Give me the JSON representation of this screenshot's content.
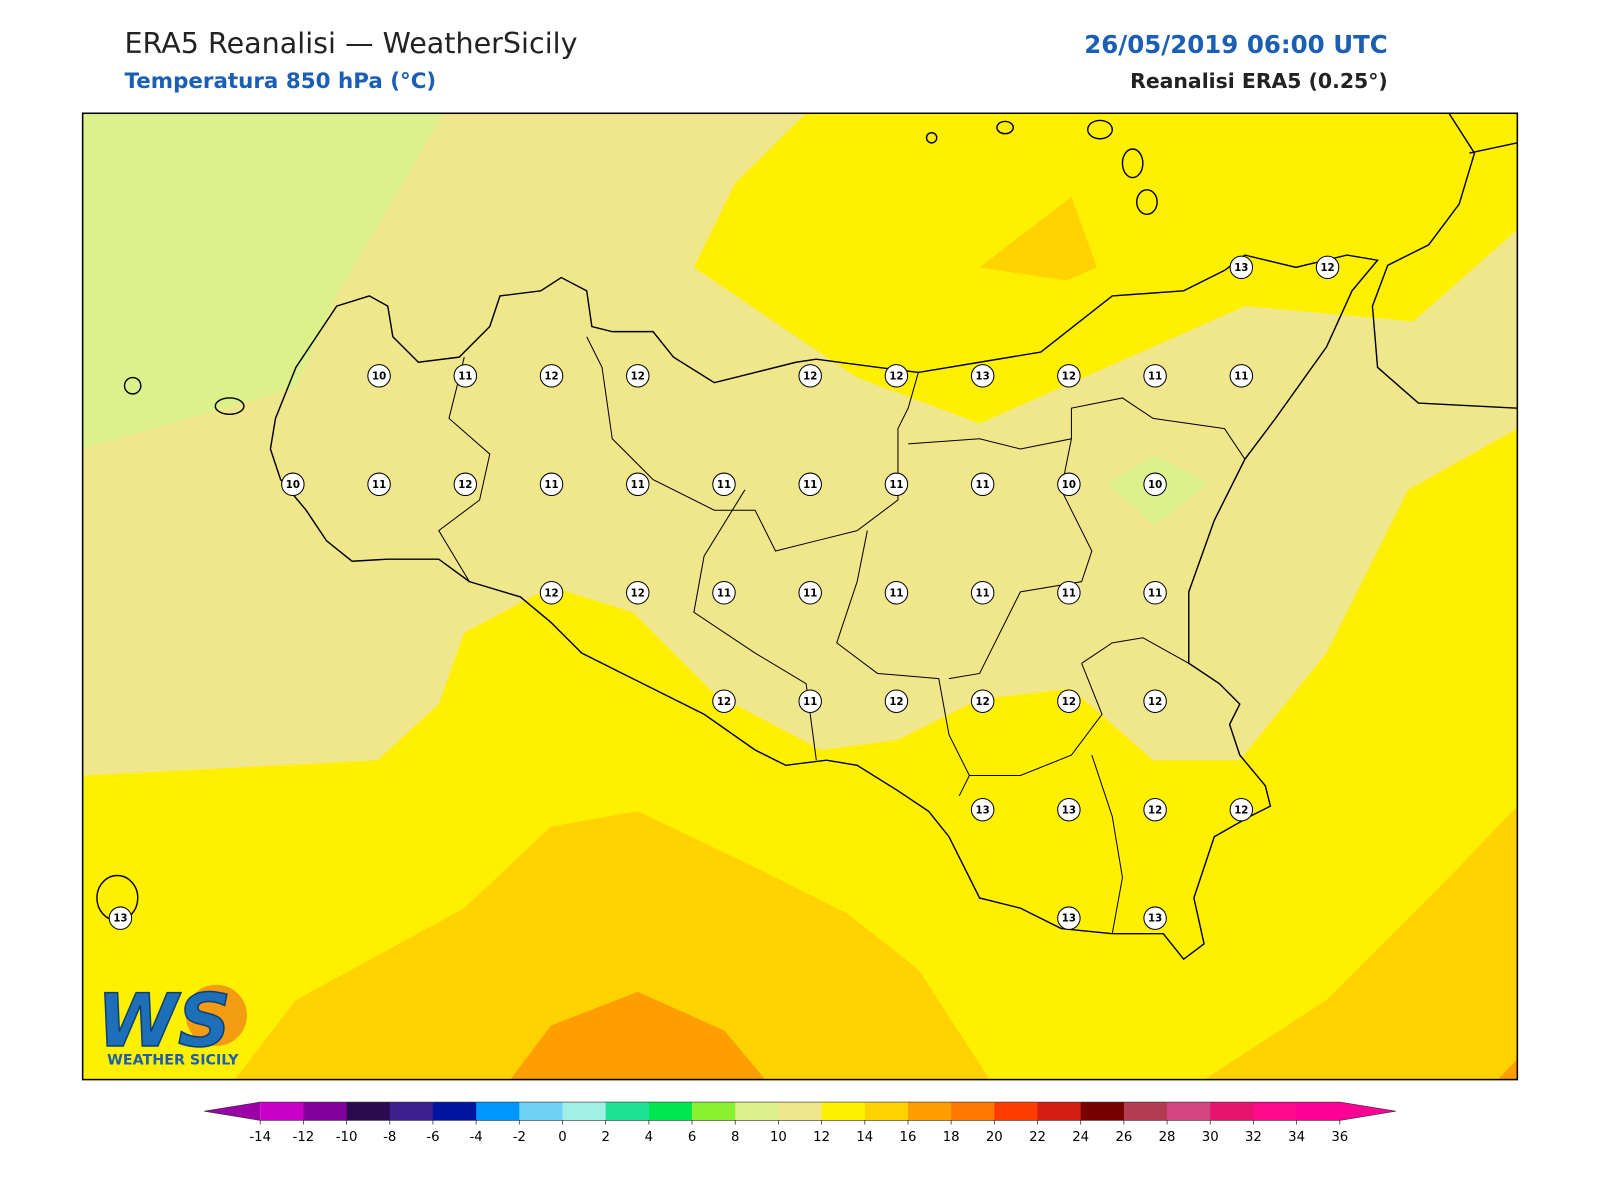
{
  "header": {
    "title": "ERA5 Reanalisi — WeatherSicily",
    "subtitle": "Temperatura 850 hPa (°C)",
    "datetime": "26/05/2019 06:00 UTC",
    "source": "Reanalisi ERA5 (0.25°)"
  },
  "stations": {
    "grid": [
      [
        null,
        null,
        null,
        null,
        null,
        null,
        null,
        null,
        null,
        null,
        null,
        null,
        null,
        13,
        12
      ],
      [
        null,
        null,
        null,
        10,
        11,
        12,
        12,
        null,
        12,
        12,
        13,
        12,
        11,
        11,
        null
      ],
      [
        null,
        null,
        10,
        11,
        12,
        11,
        11,
        11,
        11,
        11,
        11,
        10,
        10,
        null,
        null
      ],
      [
        null,
        null,
        null,
        null,
        null,
        12,
        12,
        11,
        11,
        11,
        11,
        11,
        11,
        null,
        null
      ],
      [
        null,
        null,
        null,
        null,
        null,
        null,
        null,
        12,
        11,
        12,
        12,
        12,
        12,
        null,
        null
      ],
      [
        null,
        null,
        null,
        null,
        null,
        null,
        null,
        null,
        null,
        null,
        13,
        13,
        12,
        12,
        null
      ],
      [
        13,
        null,
        null,
        null,
        null,
        null,
        null,
        null,
        null,
        null,
        null,
        13,
        13,
        null,
        null
      ]
    ]
  },
  "colorbar": {
    "ticks": [
      -14,
      -12,
      -10,
      -8,
      -6,
      -4,
      -2,
      0,
      2,
      4,
      6,
      8,
      10,
      12,
      14,
      16,
      18,
      20,
      22,
      24,
      26,
      28,
      30,
      32,
      34,
      36
    ],
    "under_color": "#9b00a8",
    "over_color": "#ff0096",
    "colors": [
      "#c800c8",
      "#82009b",
      "#2d0a50",
      "#3c1e8c",
      "#0014a0",
      "#0096ff",
      "#6ed2f5",
      "#a0f0e6",
      "#1ee196",
      "#00e650",
      "#8cf032",
      "#dcf08c",
      "#f0e68c",
      "#fff000",
      "#ffd200",
      "#ff9e00",
      "#ff7800",
      "#ff3c00",
      "#d21e14",
      "#780000",
      "#b43c50",
      "#d24682",
      "#e6146e",
      "#ff0a8c",
      "#ff0096"
    ]
  },
  "logo": {
    "mark": "WS",
    "name": "WEATHER SICILY"
  }
}
